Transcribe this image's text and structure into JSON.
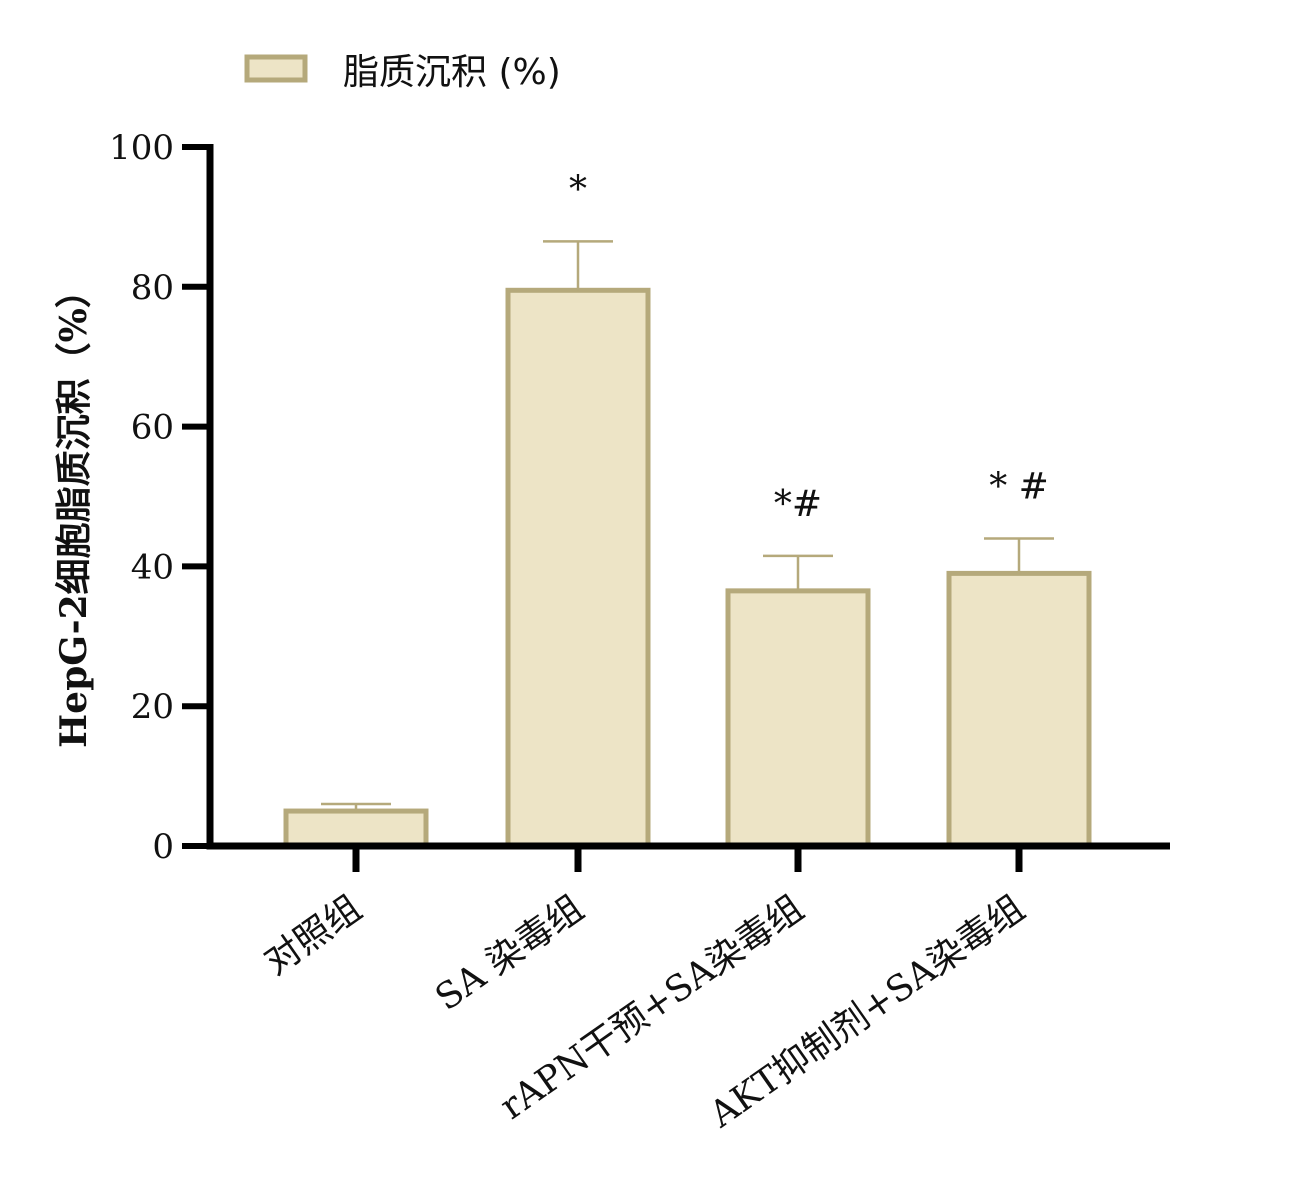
{
  "chart_data": {
    "type": "bar",
    "title": "",
    "xlabel": "",
    "ylabel": "HepG-2细胞脂质沉积（%）",
    "ylim": [
      0,
      100
    ],
    "yticks": [
      0,
      20,
      40,
      60,
      80,
      100
    ],
    "categories": [
      "对照组",
      "SA 染毒组",
      "rAPN干预+SA染毒组",
      "AKT抑制剂+SA染毒组"
    ],
    "series": [
      {
        "name": "脂质沉积 (%)",
        "values": [
          5,
          79.5,
          36.5,
          39
        ],
        "errors": [
          1,
          7,
          5,
          5
        ]
      }
    ],
    "annotations": [
      "",
      "*",
      "*#",
      "* #"
    ],
    "legend": {
      "position": "top-left",
      "label": "脂质沉积 (%)"
    },
    "grid": false,
    "colors": {
      "bar_fill": "#ede4c6",
      "bar_stroke": "#b5a97b",
      "axis": "#000000"
    }
  }
}
